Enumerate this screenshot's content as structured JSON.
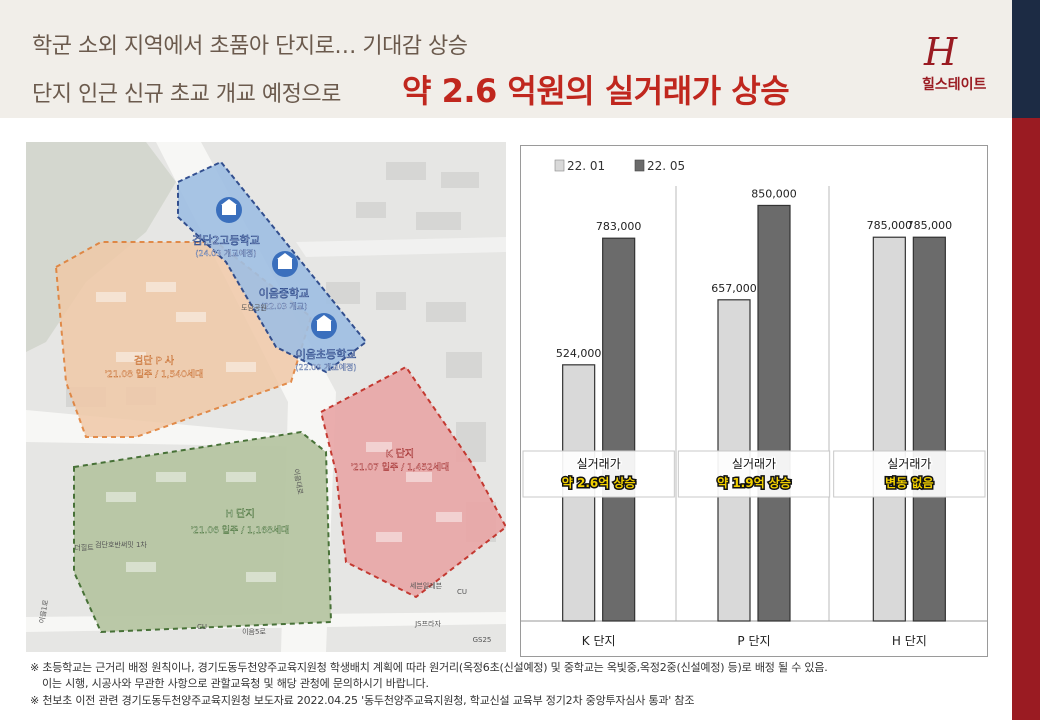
{
  "header": {
    "title_line1": "학군 소외 지역에서 초품아 단지로… 기대감 상승",
    "title_line2": "단지 인근 신규 초교 개교 예정으로",
    "title_highlight": "약 2.6 억원의 실거래가 상승",
    "logo_mark": "H",
    "logo_text": "힐스테이트"
  },
  "map": {
    "schools": [
      {
        "name": "검단2고등학교",
        "note": "(24.03 개교예정)"
      },
      {
        "name": "이음중학교",
        "note": "(22.03 개교)"
      },
      {
        "name": "이음초등학교",
        "note": "(22.09 개교예정)"
      }
    ],
    "complexes": [
      {
        "name": "검단 P 사",
        "info": "'21.08 입주 / 1,540세대"
      },
      {
        "name": "K 단지",
        "info": "'21.07 입주 / 1,452세대"
      },
      {
        "name": "H 단지",
        "info": "'21.06 입주 / 1,168세대"
      }
    ],
    "small_labels": [
      "도담공원",
      "검단호반써밋 1차",
      "더힐트",
      "이음5로",
      "JS프라자",
      "GS25",
      "세븐일레븐",
      "CU",
      "CU",
      "이음대로",
      "이음1로"
    ]
  },
  "chart_data": {
    "type": "bar",
    "categories": [
      "K 단지",
      "P 단지",
      "H 단지"
    ],
    "series": [
      {
        "name": "22. 01",
        "values": [
          524000,
          657000,
          785000
        ],
        "color": "#d9d9d9"
      },
      {
        "name": "22. 05",
        "values": [
          783000,
          850000,
          785000
        ],
        "color": "#6b6b6b"
      }
    ],
    "value_labels": {
      "22. 01": [
        "524,000",
        "657,000",
        "785,000"
      ],
      "22. 05": [
        "783,000",
        "850,000",
        "785,000"
      ]
    },
    "annotations": [
      {
        "line1": "실거래가",
        "line2": "약 2.6억 상승"
      },
      {
        "line1": "실거래가",
        "line2": "약 1.9억 상승"
      },
      {
        "line1": "실거래가",
        "line2": "변동 없음"
      }
    ],
    "ylim": [
      0,
      900000
    ],
    "title": "",
    "xlabel": "",
    "ylabel": ""
  },
  "footnotes": [
    "※ 초등학교는 근거리 배정 원칙이나, 경기도동두천양주교육지원청 학생배치 계획에 따라 원거리(옥정6초(신설예정) 및 중학교는 옥빛중,옥정2중(신설예정) 등)로 배정 될 수 있음.",
    "이는 시행, 시공사와 무관한 사항으로 관할교육청 및 해당 관청에 문의하시기 바랍니다.",
    "※ 천보초 이전 관련 경기도동두천양주교육지원청 보도자료 2022.04.25 '동두천양주교육지원청, 학교신설 교육부 정기2차 중앙투자심사 통과' 참조"
  ]
}
